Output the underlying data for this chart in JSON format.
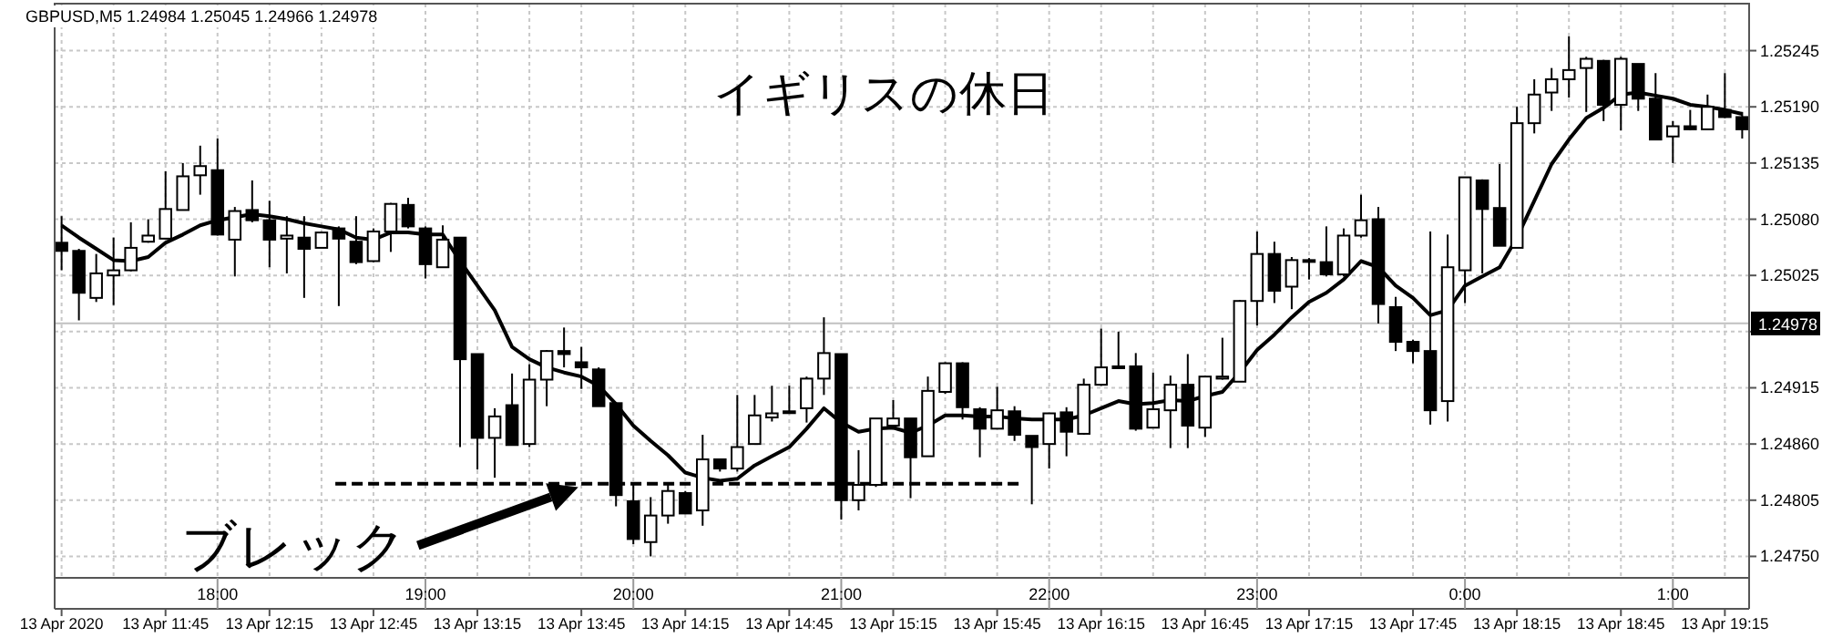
{
  "chart_data": {
    "type": "candlestick",
    "title": "GBPUSD,M5  1.24984 1.25045 1.24966 1.24978",
    "x": [
      "2020-04-13T11:15",
      "2020-04-13T11:20",
      "2020-04-13T11:25",
      "2020-04-13T11:30",
      "2020-04-13T11:35",
      "2020-04-13T11:40",
      "2020-04-13T11:45",
      "2020-04-13T11:50",
      "2020-04-13T11:55",
      "2020-04-13T12:00",
      "2020-04-13T12:05",
      "2020-04-13T12:10",
      "2020-04-13T12:15",
      "2020-04-13T12:20",
      "2020-04-13T12:25",
      "2020-04-13T12:30",
      "2020-04-13T12:35",
      "2020-04-13T12:40",
      "2020-04-13T12:45",
      "2020-04-13T12:50",
      "2020-04-13T12:55",
      "2020-04-13T13:00",
      "2020-04-13T13:05",
      "2020-04-13T13:10",
      "2020-04-13T13:15",
      "2020-04-13T13:20",
      "2020-04-13T13:25",
      "2020-04-13T13:30",
      "2020-04-13T13:35",
      "2020-04-13T13:40",
      "2020-04-13T13:45",
      "2020-04-13T13:50",
      "2020-04-13T13:55",
      "2020-04-13T14:00",
      "2020-04-13T14:05",
      "2020-04-13T14:10",
      "2020-04-13T14:15",
      "2020-04-13T14:20",
      "2020-04-13T14:25",
      "2020-04-13T14:30",
      "2020-04-13T14:35",
      "2020-04-13T14:40",
      "2020-04-13T14:45",
      "2020-04-13T14:50",
      "2020-04-13T14:55",
      "2020-04-13T15:00",
      "2020-04-13T15:05",
      "2020-04-13T15:10",
      "2020-04-13T15:15",
      "2020-04-13T15:20",
      "2020-04-13T15:25",
      "2020-04-13T15:30",
      "2020-04-13T15:35",
      "2020-04-13T15:40",
      "2020-04-13T15:45",
      "2020-04-13T15:50",
      "2020-04-13T15:55",
      "2020-04-13T16:00",
      "2020-04-13T16:05",
      "2020-04-13T16:10",
      "2020-04-13T16:15",
      "2020-04-13T16:20",
      "2020-04-13T16:25",
      "2020-04-13T16:30",
      "2020-04-13T16:35",
      "2020-04-13T16:40",
      "2020-04-13T16:45",
      "2020-04-13T16:50",
      "2020-04-13T16:55",
      "2020-04-13T17:00",
      "2020-04-13T17:05",
      "2020-04-13T17:10",
      "2020-04-13T17:15",
      "2020-04-13T17:20",
      "2020-04-13T17:25",
      "2020-04-13T17:30",
      "2020-04-13T17:35",
      "2020-04-13T17:40",
      "2020-04-13T17:45",
      "2020-04-13T17:50",
      "2020-04-13T17:55",
      "2020-04-13T18:00",
      "2020-04-13T18:05",
      "2020-04-13T18:10",
      "2020-04-13T18:15",
      "2020-04-13T18:20",
      "2020-04-13T18:25",
      "2020-04-13T18:30",
      "2020-04-13T18:35",
      "2020-04-13T18:40",
      "2020-04-13T18:45",
      "2020-04-13T18:50",
      "2020-04-13T18:55",
      "2020-04-13T19:00",
      "2020-04-13T19:05",
      "2020-04-13T19:10",
      "2020-04-13T19:15",
      "2020-04-13T19:20"
    ],
    "ohlc": [
      [
        1.25057,
        1.25083,
        1.2503,
        1.25049
      ],
      [
        1.25049,
        1.25051,
        1.24981,
        1.25008
      ],
      [
        1.25003,
        1.25046,
        1.24999,
        1.25027
      ],
      [
        1.25025,
        1.25062,
        1.24996,
        1.2503
      ],
      [
        1.2503,
        1.25077,
        1.25029,
        1.25052
      ],
      [
        1.25058,
        1.2508,
        1.25057,
        1.25064
      ],
      [
        1.25061,
        1.25127,
        1.25061,
        1.2509
      ],
      [
        1.25089,
        1.25135,
        1.25089,
        1.25122
      ],
      [
        1.25123,
        1.25152,
        1.25104,
        1.25132
      ],
      [
        1.25128,
        1.25159,
        1.25064,
        1.25065
      ],
      [
        1.2506,
        1.25092,
        1.25024,
        1.25088
      ],
      [
        1.25089,
        1.25118,
        1.25077,
        1.25079
      ],
      [
        1.25079,
        1.25098,
        1.25033,
        1.2506
      ],
      [
        1.25061,
        1.25083,
        1.25027,
        1.25064
      ],
      [
        1.25062,
        1.25083,
        1.25003,
        1.25051
      ],
      [
        1.25052,
        1.25068,
        1.25052,
        1.25067
      ],
      [
        1.25071,
        1.25073,
        1.24995,
        1.25061
      ],
      [
        1.25058,
        1.25083,
        1.25036,
        1.25038
      ],
      [
        1.25039,
        1.25071,
        1.25038,
        1.25068
      ],
      [
        1.25068,
        1.25096,
        1.25048,
        1.25095
      ],
      [
        1.25094,
        1.25101,
        1.25071,
        1.25073
      ],
      [
        1.25071,
        1.25073,
        1.25022,
        1.25036
      ],
      [
        1.25033,
        1.25074,
        1.25033,
        1.2506
      ],
      [
        1.25062,
        1.25062,
        1.24857,
        1.24943
      ],
      [
        1.24948,
        1.24948,
        1.24835,
        1.24866
      ],
      [
        1.24866,
        1.24895,
        1.24827,
        1.24887
      ],
      [
        1.24898,
        1.24929,
        1.24859,
        1.24859
      ],
      [
        1.2486,
        1.24938,
        1.24857,
        1.24923
      ],
      [
        1.24923,
        1.24952,
        1.24897,
        1.24951
      ],
      [
        1.24951,
        1.24974,
        1.24935,
        1.24948
      ],
      [
        1.2494,
        1.24955,
        1.24914,
        1.24935
      ],
      [
        1.24933,
        1.24935,
        1.24897,
        1.24897
      ],
      [
        1.249,
        1.249,
        1.24799,
        1.2481
      ],
      [
        1.24804,
        1.24821,
        1.24762,
        1.24767
      ],
      [
        1.24764,
        1.24808,
        1.2475,
        1.2479
      ],
      [
        1.2479,
        1.24821,
        1.24782,
        1.24814
      ],
      [
        1.24812,
        1.24814,
        1.24792,
        1.24792
      ],
      [
        1.24795,
        1.24869,
        1.2478,
        1.24845
      ],
      [
        1.24845,
        1.24845,
        1.24833,
        1.24836
      ],
      [
        1.24836,
        1.24908,
        1.24833,
        1.24857
      ],
      [
        1.2486,
        1.24908,
        1.2486,
        1.24888
      ],
      [
        1.24886,
        1.24917,
        1.24882,
        1.2489
      ],
      [
        1.24891,
        1.24917,
        1.24891,
        1.24892
      ],
      [
        1.24895,
        1.24926,
        1.24881,
        1.24924
      ],
      [
        1.24924,
        1.24984,
        1.24908,
        1.24949
      ],
      [
        1.24948,
        1.24948,
        1.24786,
        1.24805
      ],
      [
        1.24805,
        1.24854,
        1.24795,
        1.2482
      ],
      [
        1.2482,
        1.24885,
        1.24818,
        1.24885
      ],
      [
        1.24878,
        1.24903,
        1.24875,
        1.24885
      ],
      [
        1.24885,
        1.24885,
        1.24807,
        1.24847
      ],
      [
        1.24848,
        1.24926,
        1.24848,
        1.24912
      ],
      [
        1.24911,
        1.2494,
        1.24909,
        1.24939
      ],
      [
        1.24939,
        1.2494,
        1.24884,
        1.24896
      ],
      [
        1.24894,
        1.24896,
        1.24847,
        1.24875
      ],
      [
        1.24875,
        1.24916,
        1.24875,
        1.24893
      ],
      [
        1.24892,
        1.24897,
        1.24863,
        1.24869
      ],
      [
        1.24868,
        1.24868,
        1.24801,
        1.24857
      ],
      [
        1.2486,
        1.2489,
        1.24836,
        1.2489
      ],
      [
        1.24891,
        1.24896,
        1.24848,
        1.24872
      ],
      [
        1.2487,
        1.24924,
        1.24869,
        1.24918
      ],
      [
        1.24918,
        1.24973,
        1.24917,
        1.24935
      ],
      [
        1.24935,
        1.2497,
        1.24935,
        1.24936
      ],
      [
        1.24936,
        1.24949,
        1.24873,
        1.24875
      ],
      [
        1.24876,
        1.2493,
        1.24876,
        1.24894
      ],
      [
        1.24893,
        1.24927,
        1.24856,
        1.24918
      ],
      [
        1.24918,
        1.24948,
        1.24856,
        1.24878
      ],
      [
        1.24876,
        1.24927,
        1.24867,
        1.24926
      ],
      [
        1.24924,
        1.24964,
        1.24923,
        1.24926
      ],
      [
        1.24921,
        1.25001,
        1.24921,
        1.25
      ],
      [
        1.25,
        1.25068,
        1.24976,
        1.25046
      ],
      [
        1.25046,
        1.25058,
        1.24998,
        1.2501
      ],
      [
        1.25014,
        1.25043,
        1.24992,
        1.2504
      ],
      [
        1.25039,
        1.25042,
        1.25021,
        1.2504
      ],
      [
        1.25038,
        1.25073,
        1.25024,
        1.25026
      ],
      [
        1.25026,
        1.25071,
        1.25024,
        1.25064
      ],
      [
        1.25064,
        1.25104,
        1.25062,
        1.25079
      ],
      [
        1.2508,
        1.25092,
        1.24978,
        1.24997
      ],
      [
        1.24994,
        1.25004,
        1.24951,
        1.2496
      ],
      [
        1.2496,
        1.24962,
        1.24939,
        1.24951
      ],
      [
        1.24951,
        1.25068,
        1.24879,
        1.24893
      ],
      [
        1.24902,
        1.25065,
        1.24882,
        1.25033
      ],
      [
        1.2503,
        1.25121,
        1.24998,
        1.25121
      ],
      [
        1.25118,
        1.25119,
        1.25027,
        1.2509
      ],
      [
        1.25091,
        1.25134,
        1.25054,
        1.25054
      ],
      [
        1.25052,
        1.2519,
        1.25052,
        1.25174
      ],
      [
        1.25174,
        1.25217,
        1.25164,
        1.25202
      ],
      [
        1.25204,
        1.25228,
        1.25186,
        1.25217
      ],
      [
        1.25217,
        1.25259,
        1.25199,
        1.25226
      ],
      [
        1.25228,
        1.25239,
        1.25185,
        1.25237
      ],
      [
        1.25235,
        1.25236,
        1.25176,
        1.25192
      ],
      [
        1.25192,
        1.25239,
        1.25167,
        1.25237
      ],
      [
        1.25232,
        1.25232,
        1.25186,
        1.25198
      ],
      [
        1.25198,
        1.25223,
        1.25158,
        1.25158
      ],
      [
        1.25161,
        1.25176,
        1.25135,
        1.25171
      ],
      [
        1.25171,
        1.25187,
        1.25167,
        1.25168
      ],
      [
        1.25168,
        1.25202,
        1.25168,
        1.2519
      ],
      [
        1.25187,
        1.25223,
        1.25179,
        1.2518
      ],
      [
        1.2518,
        1.25185,
        1.25159,
        1.25168
      ]
    ],
    "series": [
      {
        "type": "line",
        "color": "#000000",
        "values": [
          1.25074,
          1.25062,
          1.25051,
          1.2504,
          1.25039,
          1.25043,
          1.25057,
          1.25065,
          1.25074,
          1.25079,
          1.25082,
          1.25085,
          1.25083,
          1.2508,
          1.25076,
          1.25073,
          1.2507,
          1.25062,
          1.2506,
          1.25067,
          1.25067,
          1.25065,
          1.25065,
          1.25039,
          1.25015,
          1.24991,
          1.24955,
          1.24943,
          1.24935,
          1.2493,
          1.24926,
          1.24917,
          1.24899,
          1.24878,
          1.24863,
          1.24849,
          1.24832,
          1.24827,
          1.24824,
          1.24826,
          1.24839,
          1.24848,
          1.24857,
          1.24875,
          1.24895,
          1.24881,
          1.24872,
          1.24875,
          1.24876,
          1.24871,
          1.24878,
          1.24888,
          1.24888,
          1.24887,
          1.24887,
          1.24885,
          1.24884,
          1.24884,
          1.24884,
          1.24888,
          1.24895,
          1.24902,
          1.24899,
          1.249,
          1.24903,
          1.24902,
          1.24907,
          1.24911,
          1.2493,
          1.24952,
          1.24967,
          1.24984,
          1.24999,
          1.25008,
          1.25021,
          1.25039,
          1.25033,
          1.25015,
          1.25003,
          1.24986,
          1.24991,
          1.25015,
          1.25024,
          1.25033,
          1.25062,
          1.25098,
          1.25134,
          1.25158,
          1.25179,
          1.25189,
          1.25202,
          1.25204,
          1.25201,
          1.25198,
          1.25192,
          1.2519,
          1.25187,
          1.25183
        ]
      },
      {
        "type": "line",
        "color": "#000000",
        "line_style": "dashed",
        "x": [
          "2020-04-13T12:34",
          "2020-04-13T15:52"
        ],
        "values": [
          1.24821,
          1.24821
        ]
      }
    ],
    "xlim": [
      "2020-04-13T11:13",
      "2020-04-13T19:22"
    ],
    "xticks": [
      {
        "value": "2020-04-13T11:15",
        "label": "13 Apr 2020"
      },
      {
        "value": "2020-04-13T11:30",
        "label": null
      },
      {
        "value": "2020-04-13T11:45",
        "label": "13 Apr 11:45"
      },
      {
        "value": "2020-04-13T12:00",
        "label": null
      },
      {
        "value": "2020-04-13T12:15",
        "label": "13 Apr 12:15"
      },
      {
        "value": "2020-04-13T12:30",
        "label": null
      },
      {
        "value": "2020-04-13T12:45",
        "label": "13 Apr 12:45"
      },
      {
        "value": "2020-04-13T13:00",
        "label": null
      },
      {
        "value": "2020-04-13T13:15",
        "label": "13 Apr 13:15"
      },
      {
        "value": "2020-04-13T13:30",
        "label": null
      },
      {
        "value": "2020-04-13T13:45",
        "label": "13 Apr 13:45"
      },
      {
        "value": "2020-04-13T14:00",
        "label": null
      },
      {
        "value": "2020-04-13T14:15",
        "label": "13 Apr 14:15"
      },
      {
        "value": "2020-04-13T14:30",
        "label": null
      },
      {
        "value": "2020-04-13T14:45",
        "label": "13 Apr 14:45"
      },
      {
        "value": "2020-04-13T15:00",
        "label": null
      },
      {
        "value": "2020-04-13T15:15",
        "label": "13 Apr 15:15"
      },
      {
        "value": "2020-04-13T15:30",
        "label": null
      },
      {
        "value": "2020-04-13T15:45",
        "label": "13 Apr 15:45"
      },
      {
        "value": "2020-04-13T16:00",
        "label": null
      },
      {
        "value": "2020-04-13T16:15",
        "label": "13 Apr 16:15"
      },
      {
        "value": "2020-04-13T16:30",
        "label": null
      },
      {
        "value": "2020-04-13T16:45",
        "label": "13 Apr 16:45"
      },
      {
        "value": "2020-04-13T17:00",
        "label": null
      },
      {
        "value": "2020-04-13T17:15",
        "label": "13 Apr 17:15"
      },
      {
        "value": "2020-04-13T17:30",
        "label": null
      },
      {
        "value": "2020-04-13T17:45",
        "label": "13 Apr 17:45"
      },
      {
        "value": "2020-04-13T18:00",
        "label": null
      },
      {
        "value": "2020-04-13T18:15",
        "label": "13 Apr 18:15"
      },
      {
        "value": "2020-04-13T18:30",
        "label": null
      },
      {
        "value": "2020-04-13T18:45",
        "label": "13 Apr 18:45"
      },
      {
        "value": "2020-04-13T19:00",
        "label": null
      },
      {
        "value": "2020-04-13T19:15",
        "label": "13 Apr 19:15"
      }
    ],
    "x2lim": [
      "2020-04-13T17:13",
      "2020-04-14T01:22"
    ],
    "x2ticks": [
      {
        "value": "2020-04-13T18:00",
        "label": "18:00"
      },
      {
        "value": "2020-04-13T19:00",
        "label": "19:00"
      },
      {
        "value": "2020-04-13T20:00",
        "label": "20:00"
      },
      {
        "value": "2020-04-13T21:00",
        "label": "21:00"
      },
      {
        "value": "2020-04-13T22:00",
        "label": "22:00"
      },
      {
        "value": "2020-04-13T23:00",
        "label": "23:00"
      },
      {
        "value": "2020-04-14T00:00",
        "label": "0:00"
      },
      {
        "value": "2020-04-14T01:00",
        "label": "1:00"
      }
    ],
    "ylim": [
      1.24729,
      1.25291
    ],
    "yticks": [
      {
        "value": 1.2475,
        "label": "1.24750"
      },
      1.24805,
      {
        "value": 1.2486,
        "label": "1.24860"
      },
      1.24915,
      {
        "value": 1.2497,
        "label": null
      },
      1.25025,
      {
        "value": 1.2508,
        "label": "1.25080"
      },
      1.25135,
      {
        "value": 1.2519,
        "label": "1.25190"
      },
      1.25245
    ],
    "grid": true,
    "ref_lines": [
      {
        "axis": "y",
        "value": 1.24978,
        "label": "1.24978",
        "color": "#c0c0c0"
      }
    ],
    "annotations": [
      "イギリスの休日",
      "ブレック"
    ]
  }
}
